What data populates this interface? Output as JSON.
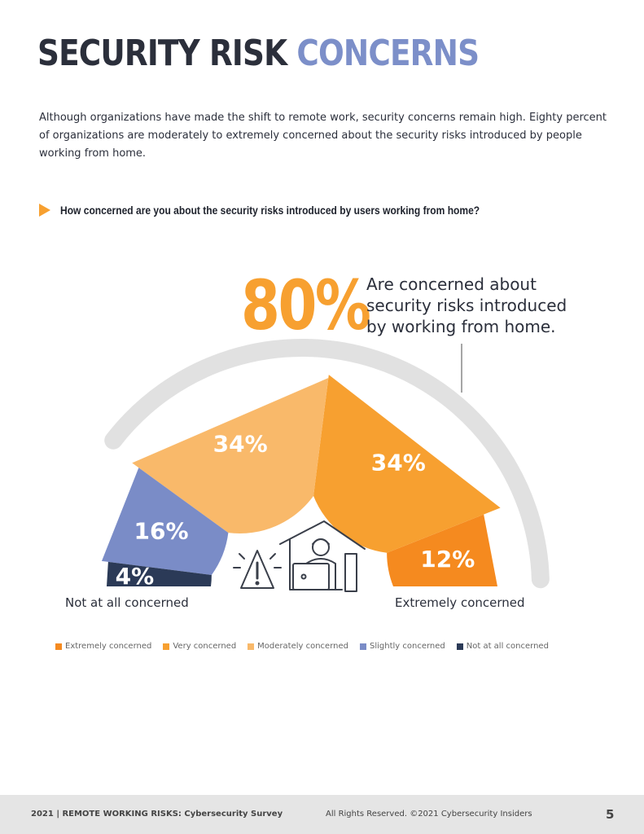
{
  "header": {
    "title_part1": "SECURITY RISK",
    "title_part2": "CONCERNS"
  },
  "intro": "Although organizations have made the shift to remote work, security concerns remain high. Eighty percent of organizations are moderately to extremely concerned about the security risks introduced by people working from home.",
  "question": "How concerned are you about the security risks introduced by users working from home?",
  "callout": {
    "value": "80%",
    "line1": "Are concerned about",
    "line2": "security risks introduced",
    "line3": "by working from home."
  },
  "axis_labels": {
    "left": "Not at all concerned",
    "right": "Extremely concerned"
  },
  "footer": {
    "left": "2021  |   REMOTE WORKING RISKS: Cybersecurity Survey",
    "middle": "All Rights Reserved.  ©2021 Cybersecurity Insiders",
    "page": "5"
  },
  "icons": [
    "warning-icon",
    "house-icon",
    "person-at-laptop-icon"
  ],
  "chart_data": {
    "type": "pie",
    "shape": "semi-donut",
    "title": "",
    "series": [
      {
        "name": "Extremely concerned",
        "label": "12%",
        "value": 12,
        "color": "#f58a1f"
      },
      {
        "name": "Very concerned",
        "label": "34%",
        "value": 34,
        "color": "#f7a030"
      },
      {
        "name": "Moderately concerned",
        "label": "34%",
        "value": 34,
        "color": "#f9b96a"
      },
      {
        "name": "Slightly concerned",
        "label": "16%",
        "value": 16,
        "color": "#7a8cc7"
      },
      {
        "name": "Not at all concerned",
        "label": "4%",
        "value": 4,
        "color": "#2b3a57"
      }
    ],
    "legend": "bottom",
    "highlight_arc": {
      "label": "80%",
      "covers": [
        "Extremely concerned",
        "Very concerned",
        "Moderately concerned"
      ],
      "color": "#e1e1e1"
    }
  }
}
